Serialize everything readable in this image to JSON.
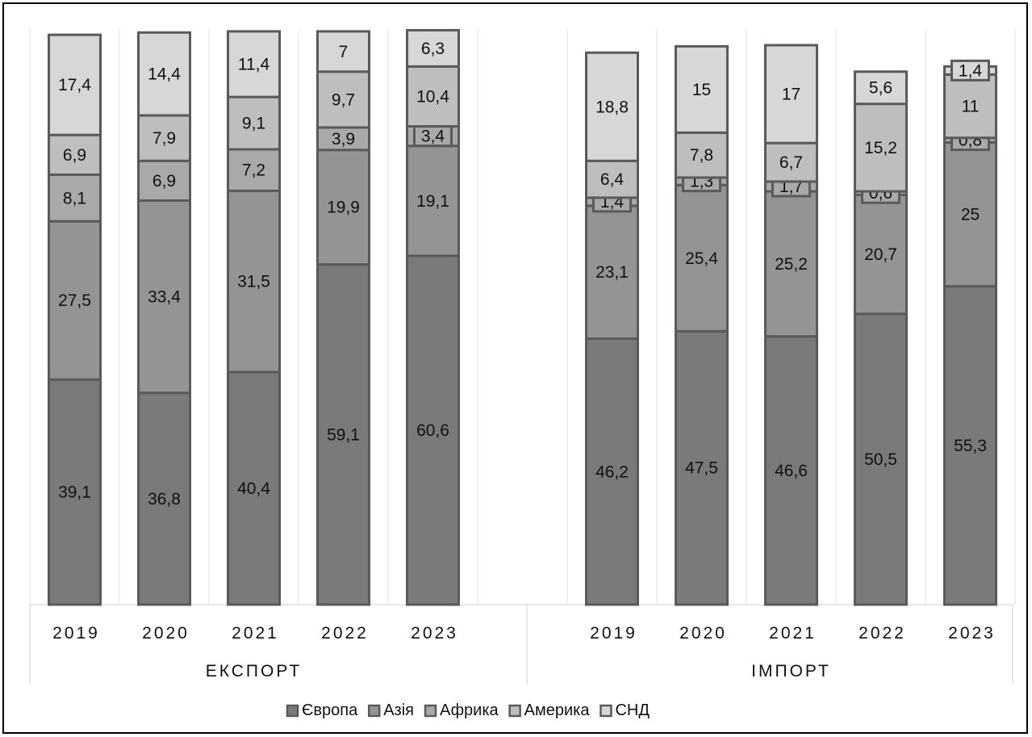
{
  "chart_data": {
    "type": "bar",
    "stacked": true,
    "groups": [
      {
        "name": "ЕКСПОРТ",
        "categories": [
          "2019",
          "2020",
          "2021",
          "2022",
          "2023"
        ]
      },
      {
        "name": "ІМПОРТ",
        "categories": [
          "2019",
          "2020",
          "2021",
          "2022",
          "2023"
        ]
      }
    ],
    "series": [
      {
        "name": "Європа",
        "color": "#7a7a7a",
        "export": [
          39.1,
          36.8,
          40.4,
          59.1,
          60.6
        ],
        "import": [
          46.2,
          47.5,
          46.6,
          50.5,
          55.3
        ],
        "export_labels": [
          "39,1",
          "36,8",
          "40,4",
          "59,1",
          "60,6"
        ],
        "import_labels": [
          "46,2",
          "47,5",
          "46,6",
          "50,5",
          "55,3"
        ]
      },
      {
        "name": "Азія",
        "color": "#949494",
        "export": [
          27.5,
          33.4,
          31.5,
          19.9,
          19.1
        ],
        "import": [
          23.1,
          25.4,
          25.2,
          20.7,
          25
        ],
        "export_labels": [
          "27,5",
          "33,4",
          "31,5",
          "19,9",
          "19,1"
        ],
        "import_labels": [
          "23,1",
          "25,4",
          "25,2",
          "20,7",
          "25"
        ]
      },
      {
        "name": "Африка",
        "color": "#a9a9a9",
        "export": [
          8.1,
          6.9,
          7.2,
          3.9,
          3.4
        ],
        "import": [
          1.4,
          1.3,
          1.7,
          0.6,
          0.8
        ],
        "export_labels": [
          "8,1",
          "6,9",
          "7,2",
          "3,9",
          "3,4"
        ],
        "import_labels": [
          "1,4",
          "1,3",
          "1,7",
          "0,6",
          "0,8"
        ]
      },
      {
        "name": "Америка",
        "color": "#bebebe",
        "export": [
          6.9,
          7.9,
          9.1,
          9.7,
          10.4
        ],
        "import": [
          6.4,
          7.8,
          6.7,
          15.2,
          11
        ],
        "export_labels": [
          "6,9",
          "7,9",
          "9,1",
          "9,7",
          "10,4"
        ],
        "import_labels": [
          "6,4",
          "7,8",
          "6,7",
          "15,2",
          "11"
        ]
      },
      {
        "name": "СНД",
        "color": "#d7d7d7",
        "export": [
          17.4,
          14.4,
          11.4,
          7,
          6.3
        ],
        "import": [
          18.8,
          15,
          17,
          5.6,
          1.4
        ],
        "export_labels": [
          "17,4",
          "14,4",
          "11,4",
          "7",
          "6,3"
        ],
        "import_labels": [
          "18,8",
          "15",
          "17",
          "5,6",
          "1,4"
        ]
      }
    ],
    "ylim": [
      0,
      100
    ],
    "grid": true,
    "legend": "bottom"
  }
}
